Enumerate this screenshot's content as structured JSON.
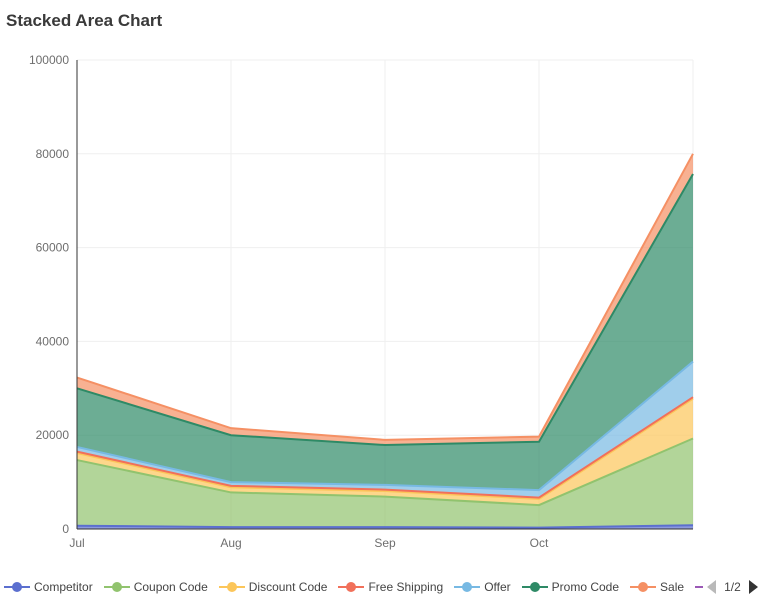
{
  "chart_data": {
    "type": "area",
    "stacked": true,
    "title": "Stacked Area Chart",
    "xlabel": "",
    "ylabel": "",
    "categories": [
      "Jul",
      "Aug",
      "Sep",
      "Oct",
      ""
    ],
    "ylim": [
      0,
      100000
    ],
    "yticks": [
      0,
      20000,
      40000,
      60000,
      80000,
      100000
    ],
    "grid": true,
    "legend_position": "bottom",
    "series": [
      {
        "name": "Competitor",
        "color": "#5b6fcf",
        "values": [
          700,
          400,
          400,
          300,
          800
        ]
      },
      {
        "name": "Coupon Code",
        "color": "#91c36e",
        "values": [
          14000,
          7400,
          6500,
          4800,
          18500
        ]
      },
      {
        "name": "Discount Code",
        "color": "#fcc65a",
        "values": [
          1500,
          1100,
          1200,
          1300,
          8500
        ]
      },
      {
        "name": "Free Shipping",
        "color": "#f1705a",
        "values": [
          300,
          300,
          300,
          300,
          300
        ]
      },
      {
        "name": "Offer",
        "color": "#77b9e3",
        "values": [
          1000,
          800,
          1000,
          1600,
          7600
        ]
      },
      {
        "name": "Promo Code",
        "color": "#2e8a66",
        "values": [
          12500,
          10000,
          8500,
          10300,
          40000
        ]
      },
      {
        "name": "Sale",
        "color": "#f59064",
        "values": [
          2300,
          1500,
          1100,
          1100,
          4300
        ]
      }
    ]
  },
  "legend": {
    "items": [
      {
        "label": "Competitor",
        "color": "#5b6fcf"
      },
      {
        "label": "Coupon Code",
        "color": "#91c36e"
      },
      {
        "label": "Discount Code",
        "color": "#fcc65a"
      },
      {
        "label": "Free Shipping",
        "color": "#f1705a"
      },
      {
        "label": "Offer",
        "color": "#77b9e3"
      },
      {
        "label": "Promo Code",
        "color": "#2e8a66"
      },
      {
        "label": "Sale",
        "color": "#f59064"
      }
    ],
    "page_text": "1/2",
    "hidden_color": "#9b59b6"
  }
}
